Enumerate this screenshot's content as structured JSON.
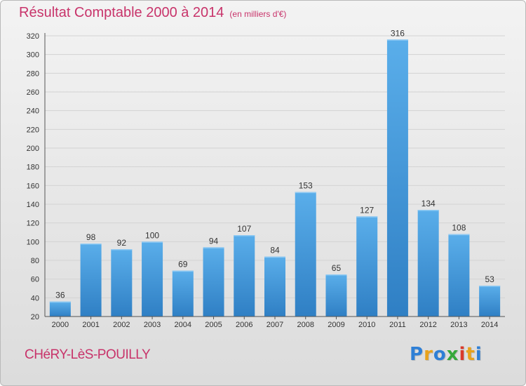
{
  "header": {
    "title": "Résultat Comptable 2000 à 2014",
    "subtitle": "(en milliers d'€)"
  },
  "footer": {
    "place": "CHéRY-LèS-POUILLY",
    "logo": {
      "letters": [
        "P",
        "r",
        "o",
        "x",
        "i",
        "t",
        "i"
      ],
      "colors": [
        "#2e7fd6",
        "#e8a21c",
        "#2e7fd6",
        "#35a83a",
        "#d93a2b",
        "#e8a21c",
        "#2e7fd6"
      ]
    }
  },
  "colors": {
    "title": "#c8336a",
    "bar_top": "#5aaeea",
    "bar_bottom": "#2f7fc4"
  },
  "chart_data": {
    "type": "bar",
    "title": "Résultat Comptable 2000 à 2014",
    "subtitle": "(en milliers d'€)",
    "categories": [
      "2000",
      "2001",
      "2002",
      "2003",
      "2004",
      "2005",
      "2006",
      "2007",
      "2008",
      "2009",
      "2010",
      "2011",
      "2012",
      "2013",
      "2014"
    ],
    "values": [
      36,
      98,
      92,
      100,
      69,
      94,
      107,
      84,
      153,
      65,
      127,
      316,
      134,
      108,
      53
    ],
    "yticks": [
      20,
      40,
      60,
      80,
      100,
      120,
      140,
      160,
      180,
      200,
      220,
      240,
      260,
      280,
      300,
      320
    ],
    "ylim": [
      20,
      320
    ],
    "grid": true,
    "legend": "none"
  }
}
